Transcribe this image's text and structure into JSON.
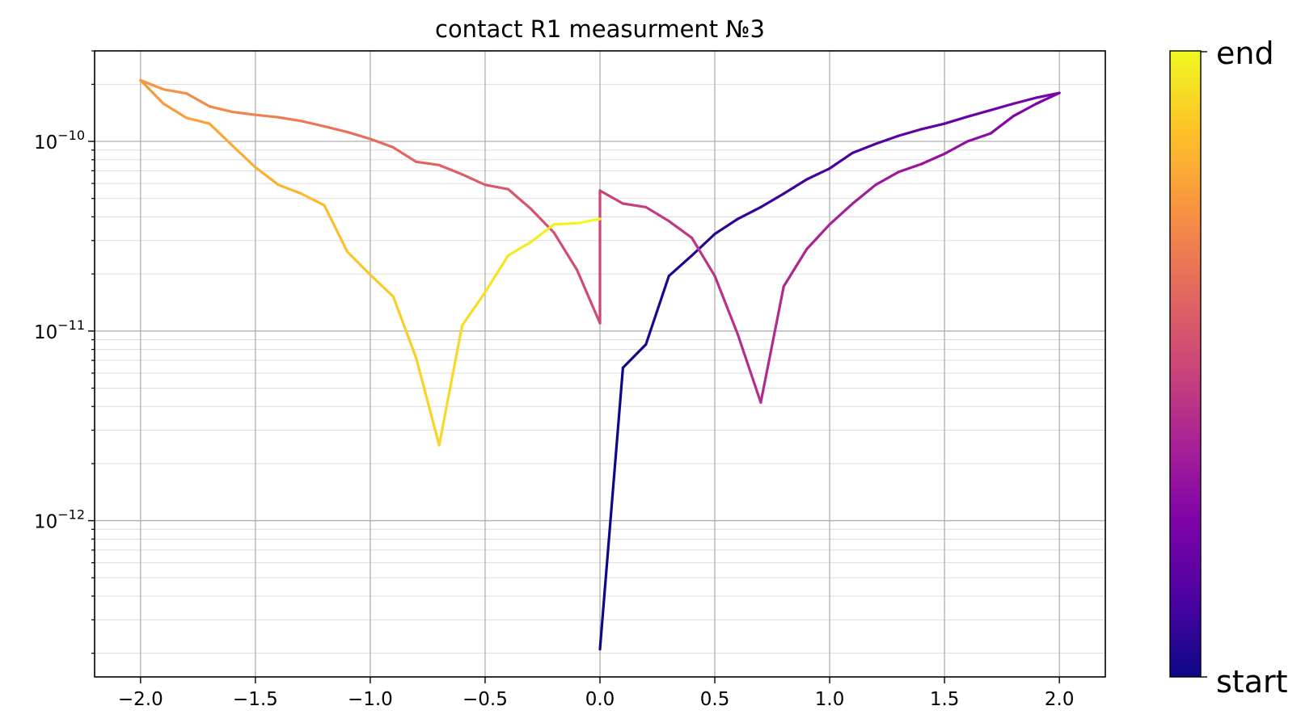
{
  "chart_data": {
    "type": "line",
    "title": "contact R1 measurment №3",
    "xlabel": "",
    "ylabel": "",
    "yscale": "log",
    "xlim": [
      -2.2,
      2.2
    ],
    "ylim": [
      1.5e-13,
      3e-10
    ],
    "grid": true,
    "x_ticks": [
      -2.0,
      -1.5,
      -1.0,
      -0.5,
      0.0,
      0.5,
      1.0,
      1.5,
      2.0
    ],
    "x_tick_labels": [
      "−2.0",
      "−1.5",
      "−1.0",
      "−0.5",
      "0.0",
      "0.5",
      "1.0",
      "1.5",
      "2.0"
    ],
    "y_ticks": [
      1e-12,
      1e-11,
      1e-10
    ],
    "y_tick_labels": [
      {
        "base": "10",
        "exp": "−12"
      },
      {
        "base": "10",
        "exp": "−11"
      },
      {
        "base": "10",
        "exp": "−10"
      }
    ],
    "colormap": "plasma",
    "colorbar": {
      "low_label": "start",
      "high_label": "end"
    },
    "x": [
      0.0,
      0.1,
      0.2,
      0.3,
      0.4,
      0.5,
      0.6,
      0.7,
      0.8,
      0.9,
      1.0,
      1.1,
      1.2,
      1.3,
      1.4,
      1.5,
      1.6,
      1.7,
      1.8,
      1.9,
      2.0,
      1.9,
      1.8,
      1.7,
      1.6,
      1.5,
      1.4,
      1.3,
      1.2,
      1.1,
      1.0,
      0.9,
      0.8,
      0.7,
      0.6,
      0.5,
      0.4,
      0.3,
      0.2,
      0.1,
      0.0,
      0.0,
      -0.1,
      -0.2,
      -0.3,
      -0.4,
      -0.5,
      -0.6,
      -0.7,
      -0.8,
      -0.9,
      -1.0,
      -1.1,
      -1.2,
      -1.3,
      -1.4,
      -1.5,
      -1.6,
      -1.7,
      -1.8,
      -1.9,
      -2.0,
      -1.9,
      -1.8,
      -1.7,
      -1.6,
      -1.5,
      -1.4,
      -1.3,
      -1.2,
      -1.1,
      -1.0,
      -0.9,
      -0.8,
      -0.7,
      -0.6,
      -0.5,
      -0.4,
      -0.3,
      -0.2,
      -0.1,
      0.0
    ],
    "y": [
      2.1e-13,
      6.4e-12,
      8.5e-12,
      1.95e-11,
      2.5e-11,
      3.25e-11,
      3.9e-11,
      4.5e-11,
      5.3e-11,
      6.3e-11,
      7.2e-11,
      8.7e-11,
      9.7e-11,
      1.07e-10,
      1.16e-10,
      1.24e-10,
      1.35e-10,
      1.46e-10,
      1.58e-10,
      1.7e-10,
      1.8e-10,
      1.58e-10,
      1.36e-10,
      1.1e-10,
      1e-10,
      8.6e-11,
      7.6e-11,
      6.9e-11,
      5.9e-11,
      4.7e-11,
      3.65e-11,
      2.7e-11,
      1.72e-11,
      4.2e-12,
      9.6e-12,
      1.95e-11,
      3.1e-11,
      3.8e-11,
      4.5e-11,
      4.7e-11,
      5.5e-11,
      1.1e-11,
      2.1e-11,
      3.3e-11,
      4.4e-11,
      5.6e-11,
      5.9e-11,
      6.7e-11,
      7.5e-11,
      7.8e-11,
      9.3e-11,
      1.03e-10,
      1.12e-10,
      1.2e-10,
      1.28e-10,
      1.34e-10,
      1.38e-10,
      1.43e-10,
      1.53e-10,
      1.79e-10,
      1.88e-10,
      2.1e-10,
      1.58e-10,
      1.33e-10,
      1.24e-10,
      9.5e-11,
      7.3e-11,
      5.9e-11,
      5.3e-11,
      4.6e-11,
      2.62e-11,
      1.98e-11,
      1.52e-11,
      7.2e-12,
      2.5e-12,
      1.07e-11,
      1.6e-11,
      2.5e-11,
      2.95e-11,
      3.65e-11,
      3.7e-11,
      3.9e-11
    ]
  }
}
